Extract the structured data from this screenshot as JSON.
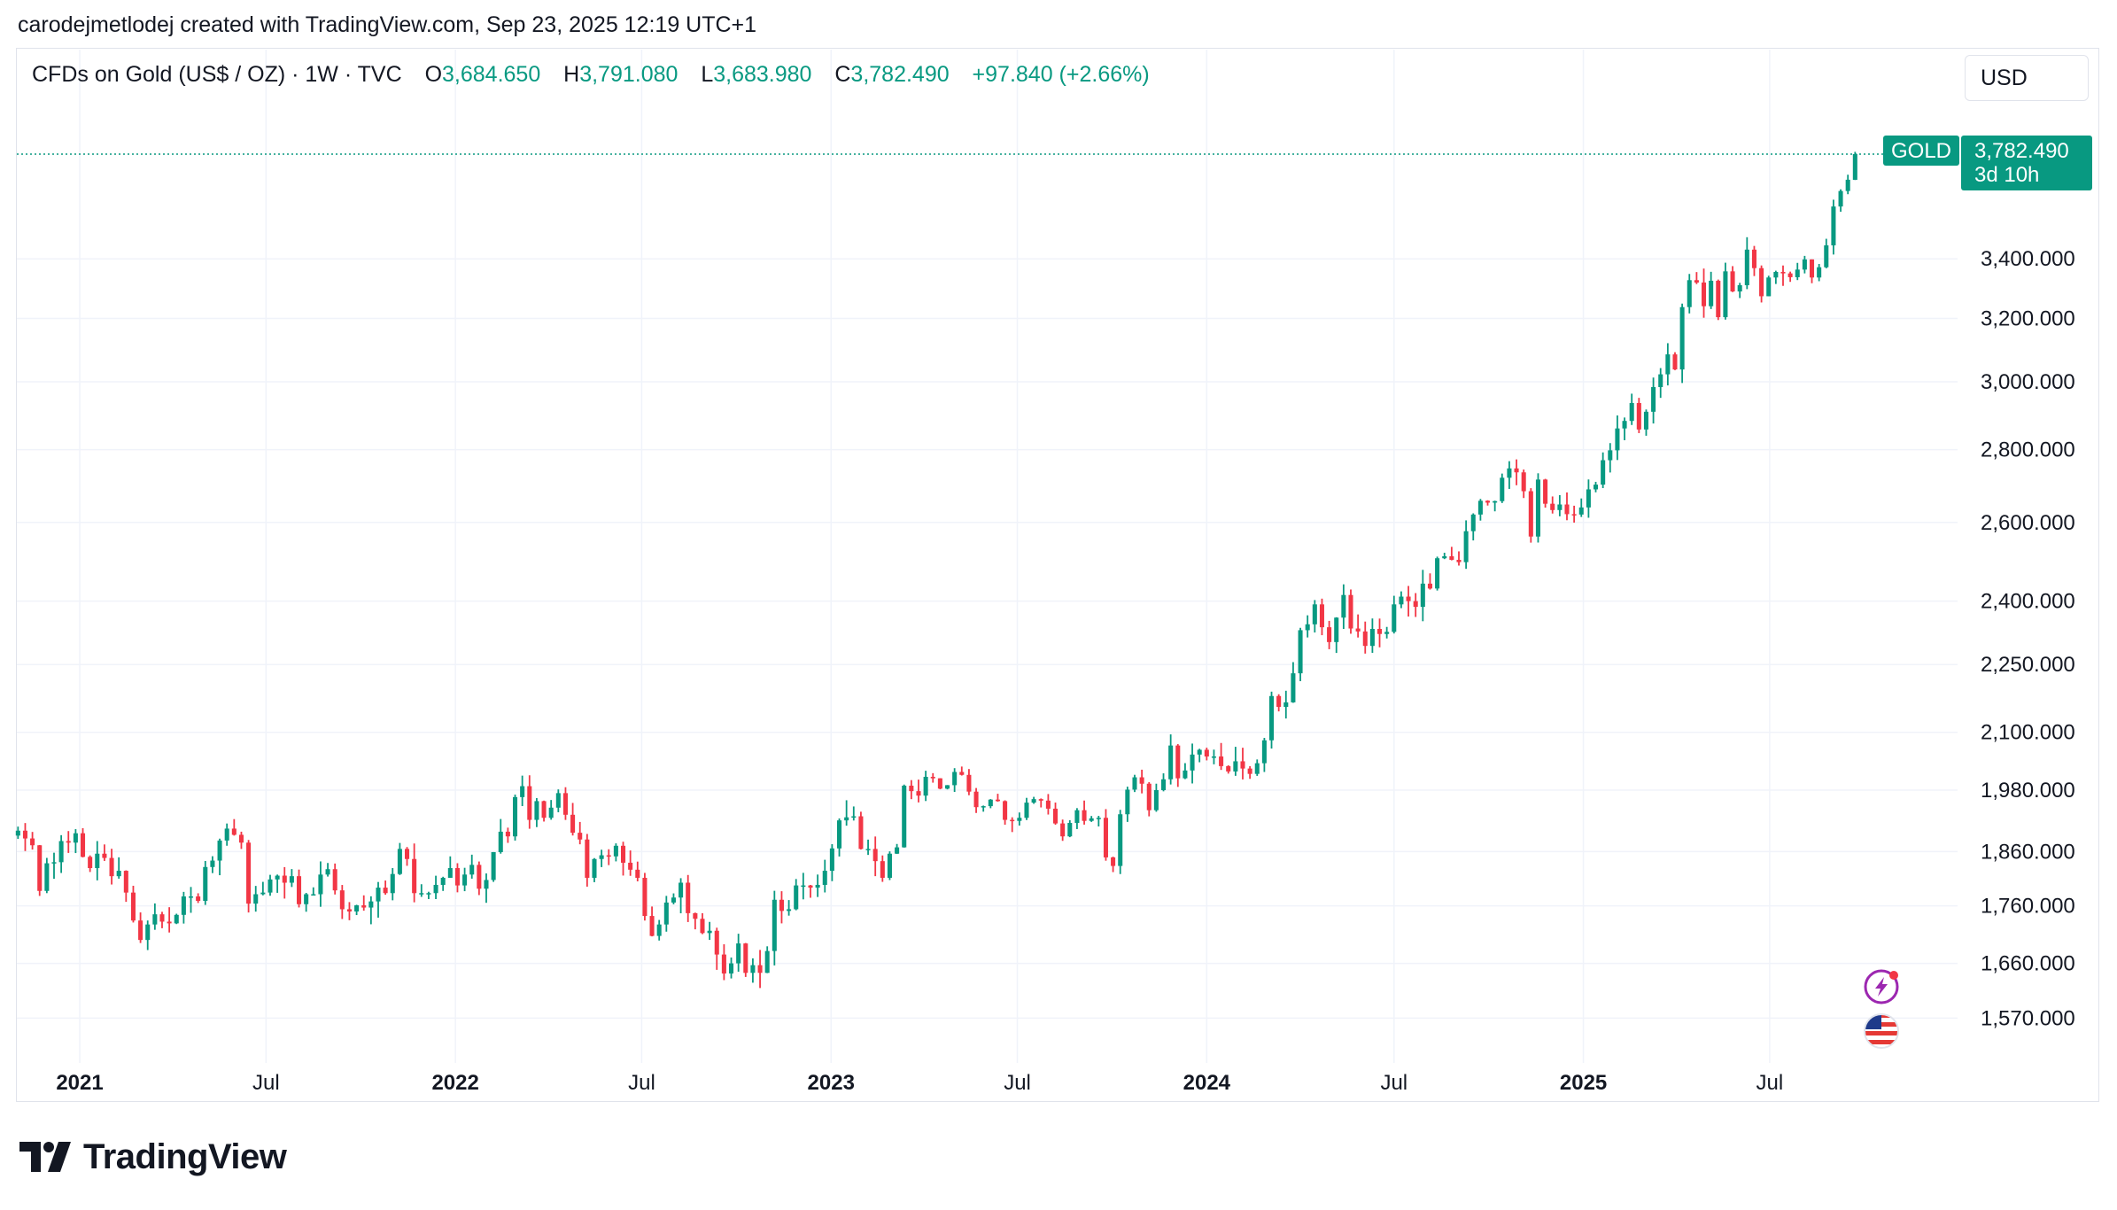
{
  "header": {
    "attribution": "carodejmetlodej created with TradingView.com, Sep 23, 2025 12:19 UTC+1"
  },
  "legend": {
    "symbol": "CFDs on Gold (US$ / OZ) · 1W · TVC",
    "open_label": "O",
    "open_value": "3,684.650",
    "high_label": "H",
    "high_value": "3,791.080",
    "low_label": "L",
    "low_value": "3,683.980",
    "close_label": "C",
    "close_value": "3,782.490",
    "change": "+97.840 (+2.66%)"
  },
  "currency_button": {
    "label": "USD"
  },
  "price_badge": {
    "ticker": "GOLD",
    "price": "3,782.490",
    "countdown": "3d 10h"
  },
  "footer": {
    "brand": "TradingView"
  },
  "icons": {
    "flash": "lightning-icon",
    "flag": "us-flag-icon"
  },
  "colors": {
    "up": "#089981",
    "down": "#f23645",
    "grid": "#f0f3fa",
    "text": "#131722",
    "lightning": "#9c27b0"
  },
  "chart_data": {
    "type": "candlestick",
    "series_name": "GOLD",
    "timeframe": "1W",
    "y_scale": "log",
    "ylim": [
      1500,
      3900
    ],
    "y_ticks": [
      3400,
      3200,
      3000,
      2800,
      2600,
      2400,
      2250,
      2100,
      1980,
      1860,
      1760,
      1660,
      1570
    ],
    "y_tick_labels": [
      "3,400.000",
      "3,200.000",
      "3,000.000",
      "2,800.000",
      "2,600.000",
      "2,400.000",
      "2,250.000",
      "2,100.000",
      "1,980.000",
      "1,860.000",
      "1,760.000",
      "1,660.000",
      "1,570.000"
    ],
    "x_ticks": [
      {
        "date": "2021-01-01",
        "label": "2021",
        "bold": true
      },
      {
        "date": "2021-07-01",
        "label": "Jul",
        "bold": false
      },
      {
        "date": "2022-01-01",
        "label": "2022",
        "bold": true
      },
      {
        "date": "2022-07-01",
        "label": "Jul",
        "bold": false
      },
      {
        "date": "2023-01-01",
        "label": "2023",
        "bold": true
      },
      {
        "date": "2023-07-01",
        "label": "Jul",
        "bold": false
      },
      {
        "date": "2024-01-01",
        "label": "2024",
        "bold": true
      },
      {
        "date": "2024-07-01",
        "label": "Jul",
        "bold": false
      },
      {
        "date": "2025-01-01",
        "label": "2025",
        "bold": true
      },
      {
        "date": "2025-07-01",
        "label": "Jul",
        "bold": false
      }
    ],
    "xlim": [
      "2020-10-31",
      "2026-01-03"
    ],
    "last": {
      "date": "2025-09-22",
      "open": 3684.65,
      "high": 3791.08,
      "low": 3683.98,
      "close": 3782.49
    },
    "weekly_closes": [
      [
        "2020-11-02",
        1900
      ],
      [
        "2020-11-09",
        1885
      ],
      [
        "2020-11-16",
        1872
      ],
      [
        "2020-11-23",
        1787
      ],
      [
        "2020-11-30",
        1838
      ],
      [
        "2020-12-07",
        1840
      ],
      [
        "2020-12-14",
        1880
      ],
      [
        "2020-12-21",
        1877
      ],
      [
        "2020-12-28",
        1895
      ],
      [
        "2021-01-04",
        1850
      ],
      [
        "2021-01-11",
        1829
      ],
      [
        "2021-01-18",
        1856
      ],
      [
        "2021-01-25",
        1848
      ],
      [
        "2021-02-01",
        1814
      ],
      [
        "2021-02-08",
        1824
      ],
      [
        "2021-02-15",
        1784
      ],
      [
        "2021-02-22",
        1734
      ],
      [
        "2021-03-01",
        1700
      ],
      [
        "2021-03-08",
        1727
      ],
      [
        "2021-03-15",
        1745
      ],
      [
        "2021-03-22",
        1732
      ],
      [
        "2021-03-29",
        1729
      ],
      [
        "2021-04-05",
        1744
      ],
      [
        "2021-04-12",
        1777
      ],
      [
        "2021-04-19",
        1777
      ],
      [
        "2021-04-26",
        1769
      ],
      [
        "2021-05-03",
        1831
      ],
      [
        "2021-05-10",
        1843
      ],
      [
        "2021-05-17",
        1881
      ],
      [
        "2021-05-24",
        1904
      ],
      [
        "2021-05-31",
        1892
      ],
      [
        "2021-06-07",
        1877
      ],
      [
        "2021-06-14",
        1764
      ],
      [
        "2021-06-21",
        1781
      ],
      [
        "2021-06-28",
        1784
      ],
      [
        "2021-07-05",
        1808
      ],
      [
        "2021-07-12",
        1815
      ],
      [
        "2021-07-19",
        1802
      ],
      [
        "2021-07-26",
        1814
      ],
      [
        "2021-08-02",
        1763
      ],
      [
        "2021-08-09",
        1781
      ],
      [
        "2021-08-16",
        1781
      ],
      [
        "2021-08-23",
        1817
      ],
      [
        "2021-08-30",
        1827
      ],
      [
        "2021-09-06",
        1788
      ],
      [
        "2021-09-13",
        1754
      ],
      [
        "2021-09-20",
        1750
      ],
      [
        "2021-09-27",
        1761
      ],
      [
        "2021-10-04",
        1757
      ],
      [
        "2021-10-11",
        1768
      ],
      [
        "2021-10-18",
        1793
      ],
      [
        "2021-10-25",
        1783
      ],
      [
        "2021-11-01",
        1818
      ],
      [
        "2021-11-08",
        1865
      ],
      [
        "2021-11-15",
        1846
      ],
      [
        "2021-11-22",
        1783
      ],
      [
        "2021-11-29",
        1783
      ],
      [
        "2021-12-06",
        1783
      ],
      [
        "2021-12-13",
        1798
      ],
      [
        "2021-12-20",
        1811
      ],
      [
        "2021-12-27",
        1829
      ],
      [
        "2022-01-03",
        1797
      ],
      [
        "2022-01-10",
        1817
      ],
      [
        "2022-01-17",
        1835
      ],
      [
        "2022-01-24",
        1791
      ],
      [
        "2022-01-31",
        1807
      ],
      [
        "2022-02-07",
        1859
      ],
      [
        "2022-02-14",
        1898
      ],
      [
        "2022-02-21",
        1889
      ],
      [
        "2022-02-28",
        1966
      ],
      [
        "2022-03-07",
        1988
      ],
      [
        "2022-03-14",
        1921
      ],
      [
        "2022-03-21",
        1958
      ],
      [
        "2022-03-28",
        1925
      ],
      [
        "2022-04-04",
        1945
      ],
      [
        "2022-04-11",
        1974
      ],
      [
        "2022-04-18",
        1931
      ],
      [
        "2022-04-25",
        1896
      ],
      [
        "2022-05-02",
        1883
      ],
      [
        "2022-05-09",
        1811
      ],
      [
        "2022-05-16",
        1846
      ],
      [
        "2022-05-23",
        1853
      ],
      [
        "2022-05-30",
        1851
      ],
      [
        "2022-06-06",
        1871
      ],
      [
        "2022-06-13",
        1839
      ],
      [
        "2022-06-20",
        1826
      ],
      [
        "2022-06-27",
        1811
      ],
      [
        "2022-07-04",
        1742
      ],
      [
        "2022-07-11",
        1707
      ],
      [
        "2022-07-18",
        1727
      ],
      [
        "2022-07-25",
        1766
      ],
      [
        "2022-08-01",
        1775
      ],
      [
        "2022-08-08",
        1802
      ],
      [
        "2022-08-15",
        1747
      ],
      [
        "2022-08-22",
        1737
      ],
      [
        "2022-08-29",
        1712
      ],
      [
        "2022-09-05",
        1716
      ],
      [
        "2022-09-12",
        1675
      ],
      [
        "2022-09-19",
        1643
      ],
      [
        "2022-09-26",
        1660
      ],
      [
        "2022-10-03",
        1694
      ],
      [
        "2022-10-10",
        1644
      ],
      [
        "2022-10-17",
        1657
      ],
      [
        "2022-10-24",
        1644
      ],
      [
        "2022-10-31",
        1681
      ],
      [
        "2022-11-07",
        1771
      ],
      [
        "2022-11-14",
        1751
      ],
      [
        "2022-11-21",
        1754
      ],
      [
        "2022-11-28",
        1797
      ],
      [
        "2022-12-05",
        1797
      ],
      [
        "2022-12-12",
        1793
      ],
      [
        "2022-12-19",
        1798
      ],
      [
        "2022-12-26",
        1824
      ],
      [
        "2023-01-02",
        1866
      ],
      [
        "2023-01-09",
        1920
      ],
      [
        "2023-01-16",
        1926
      ],
      [
        "2023-01-23",
        1928
      ],
      [
        "2023-01-30",
        1865
      ],
      [
        "2023-02-06",
        1865
      ],
      [
        "2023-02-13",
        1842
      ],
      [
        "2023-02-20",
        1811
      ],
      [
        "2023-02-27",
        1856
      ],
      [
        "2023-03-06",
        1868
      ],
      [
        "2023-03-13",
        1989
      ],
      [
        "2023-03-20",
        1978
      ],
      [
        "2023-03-27",
        1969
      ],
      [
        "2023-04-03",
        2007
      ],
      [
        "2023-04-10",
        2004
      ],
      [
        "2023-04-17",
        1983
      ],
      [
        "2023-04-24",
        1990
      ],
      [
        "2023-05-01",
        2017
      ],
      [
        "2023-05-08",
        2011
      ],
      [
        "2023-05-15",
        1977
      ],
      [
        "2023-05-22",
        1946
      ],
      [
        "2023-05-29",
        1948
      ],
      [
        "2023-06-05",
        1961
      ],
      [
        "2023-06-12",
        1958
      ],
      [
        "2023-06-19",
        1921
      ],
      [
        "2023-06-26",
        1919
      ],
      [
        "2023-07-03",
        1925
      ],
      [
        "2023-07-10",
        1955
      ],
      [
        "2023-07-17",
        1962
      ],
      [
        "2023-07-24",
        1959
      ],
      [
        "2023-07-31",
        1943
      ],
      [
        "2023-08-07",
        1914
      ],
      [
        "2023-08-14",
        1889
      ],
      [
        "2023-08-21",
        1915
      ],
      [
        "2023-08-28",
        1940
      ],
      [
        "2023-09-04",
        1919
      ],
      [
        "2023-09-11",
        1924
      ],
      [
        "2023-09-18",
        1925
      ],
      [
        "2023-09-25",
        1849
      ],
      [
        "2023-10-02",
        1833
      ],
      [
        "2023-10-09",
        1932
      ],
      [
        "2023-10-16",
        1981
      ],
      [
        "2023-10-23",
        2006
      ],
      [
        "2023-10-30",
        1993
      ],
      [
        "2023-11-06",
        1940
      ],
      [
        "2023-11-13",
        1980
      ],
      [
        "2023-11-20",
        2002
      ],
      [
        "2023-11-27",
        2072
      ],
      [
        "2023-12-04",
        2004
      ],
      [
        "2023-12-11",
        2020
      ],
      [
        "2023-12-18",
        2053
      ],
      [
        "2023-12-25",
        2063
      ],
      [
        "2024-01-01",
        2049
      ],
      [
        "2024-01-08",
        2049
      ],
      [
        "2024-01-15",
        2029
      ],
      [
        "2024-01-22",
        2018
      ],
      [
        "2024-01-29",
        2039
      ],
      [
        "2024-02-05",
        2024
      ],
      [
        "2024-02-12",
        2013
      ],
      [
        "2024-02-19",
        2035
      ],
      [
        "2024-02-26",
        2083
      ],
      [
        "2024-03-04",
        2179
      ],
      [
        "2024-03-11",
        2155
      ],
      [
        "2024-03-18",
        2165
      ],
      [
        "2024-03-25",
        2230
      ],
      [
        "2024-04-01",
        2330
      ],
      [
        "2024-04-08",
        2344
      ],
      [
        "2024-04-15",
        2392
      ],
      [
        "2024-04-22",
        2337
      ],
      [
        "2024-04-29",
        2302
      ],
      [
        "2024-05-06",
        2360
      ],
      [
        "2024-05-13",
        2415
      ],
      [
        "2024-05-20",
        2334
      ],
      [
        "2024-05-27",
        2327
      ],
      [
        "2024-06-03",
        2293
      ],
      [
        "2024-06-10",
        2333
      ],
      [
        "2024-06-17",
        2321
      ],
      [
        "2024-06-24",
        2326
      ],
      [
        "2024-07-01",
        2392
      ],
      [
        "2024-07-08",
        2411
      ],
      [
        "2024-07-15",
        2400
      ],
      [
        "2024-07-22",
        2386
      ],
      [
        "2024-07-29",
        2443
      ],
      [
        "2024-08-05",
        2431
      ],
      [
        "2024-08-12",
        2507
      ],
      [
        "2024-08-19",
        2512
      ],
      [
        "2024-08-26",
        2503
      ],
      [
        "2024-09-02",
        2497
      ],
      [
        "2024-09-09",
        2577
      ],
      [
        "2024-09-16",
        2621
      ],
      [
        "2024-09-23",
        2658
      ],
      [
        "2024-09-30",
        2653
      ],
      [
        "2024-10-07",
        2657
      ],
      [
        "2024-10-14",
        2721
      ],
      [
        "2024-10-21",
        2747
      ],
      [
        "2024-10-28",
        2736
      ],
      [
        "2024-11-04",
        2684
      ],
      [
        "2024-11-11",
        2563
      ],
      [
        "2024-11-18",
        2716
      ],
      [
        "2024-11-25",
        2650
      ],
      [
        "2024-12-02",
        2633
      ],
      [
        "2024-12-09",
        2648
      ],
      [
        "2024-12-16",
        2622
      ],
      [
        "2024-12-23",
        2621
      ],
      [
        "2024-12-30",
        2640
      ],
      [
        "2025-01-06",
        2689
      ],
      [
        "2025-01-13",
        2702
      ],
      [
        "2025-01-20",
        2770
      ],
      [
        "2025-01-27",
        2798
      ],
      [
        "2025-02-03",
        2861
      ],
      [
        "2025-02-10",
        2883
      ],
      [
        "2025-02-17",
        2936
      ],
      [
        "2025-02-24",
        2858
      ],
      [
        "2025-03-03",
        2910
      ],
      [
        "2025-03-10",
        2984
      ],
      [
        "2025-03-17",
        3023
      ],
      [
        "2025-03-24",
        3085
      ],
      [
        "2025-03-31",
        3038
      ],
      [
        "2025-04-07",
        3237
      ],
      [
        "2025-04-14",
        3327
      ],
      [
        "2025-04-21",
        3319
      ],
      [
        "2025-04-28",
        3240
      ],
      [
        "2025-05-05",
        3325
      ],
      [
        "2025-05-12",
        3204
      ],
      [
        "2025-05-19",
        3357
      ],
      [
        "2025-05-26",
        3289
      ],
      [
        "2025-06-02",
        3310
      ],
      [
        "2025-06-09",
        3432
      ],
      [
        "2025-06-16",
        3368
      ],
      [
        "2025-06-23",
        3273
      ],
      [
        "2025-06-30",
        3336
      ],
      [
        "2025-07-07",
        3355
      ],
      [
        "2025-07-14",
        3350
      ],
      [
        "2025-07-21",
        3337
      ],
      [
        "2025-07-28",
        3363
      ],
      [
        "2025-08-04",
        3398
      ],
      [
        "2025-08-11",
        3336
      ],
      [
        "2025-08-18",
        3371
      ],
      [
        "2025-08-25",
        3447
      ],
      [
        "2025-09-01",
        3586
      ],
      [
        "2025-09-08",
        3643
      ],
      [
        "2025-09-15",
        3685
      ],
      [
        "2025-09-22",
        3782.49
      ]
    ]
  }
}
